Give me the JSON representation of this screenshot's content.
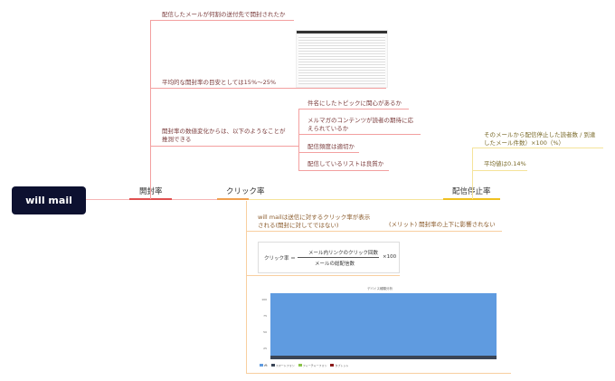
{
  "root": "will mail",
  "branches": {
    "open": {
      "label": "開封率",
      "items": [
        "配信したメールが何割の送付先で開封されたか",
        "平均的な開封率の目安としては15%～25%",
        "開封率の数値変化からは、以下のようなことが",
        "推測できる"
      ],
      "sub": [
        "件名にしたトピックに関心があるか",
        "メルマガのコンテンツが読者の期待に応",
        "えられているか",
        "配信頻度は適切か",
        "配信しているリストは良質か"
      ]
    },
    "click": {
      "label": "クリック率",
      "items": [
        "will mailは送信に対するクリック率が表示",
        "される(開封に対してではない)",
        "(メリット) 開封率の上下に影響されない"
      ],
      "formula": {
        "lhs": "クリック率 ＝",
        "num": "メール内リンクのクリック回数",
        "den": "メールの総配信数",
        "mult": "×100"
      }
    },
    "unsub": {
      "label": "配信停止率",
      "items": [
        "そのメールから配信停止した読者数 / 到達",
        "したメール件数）×100（%）",
        "平均値は0.14%"
      ]
    }
  },
  "chart": {
    "title": "デバイス種類分析",
    "yticks": [
      "100",
      "75",
      "50",
      "25",
      "0"
    ],
    "legend": [
      "PC",
      "スマートフォン",
      "フィーチャーフォン",
      "タブレット"
    ],
    "colors": [
      "#5f9be0",
      "#3a4556",
      "#8bc34a",
      "#8b1a1a"
    ]
  },
  "colors": {
    "open": "#e05050",
    "click": "#f0a050",
    "unsub": "#f0c020",
    "root": "#0d1130"
  }
}
